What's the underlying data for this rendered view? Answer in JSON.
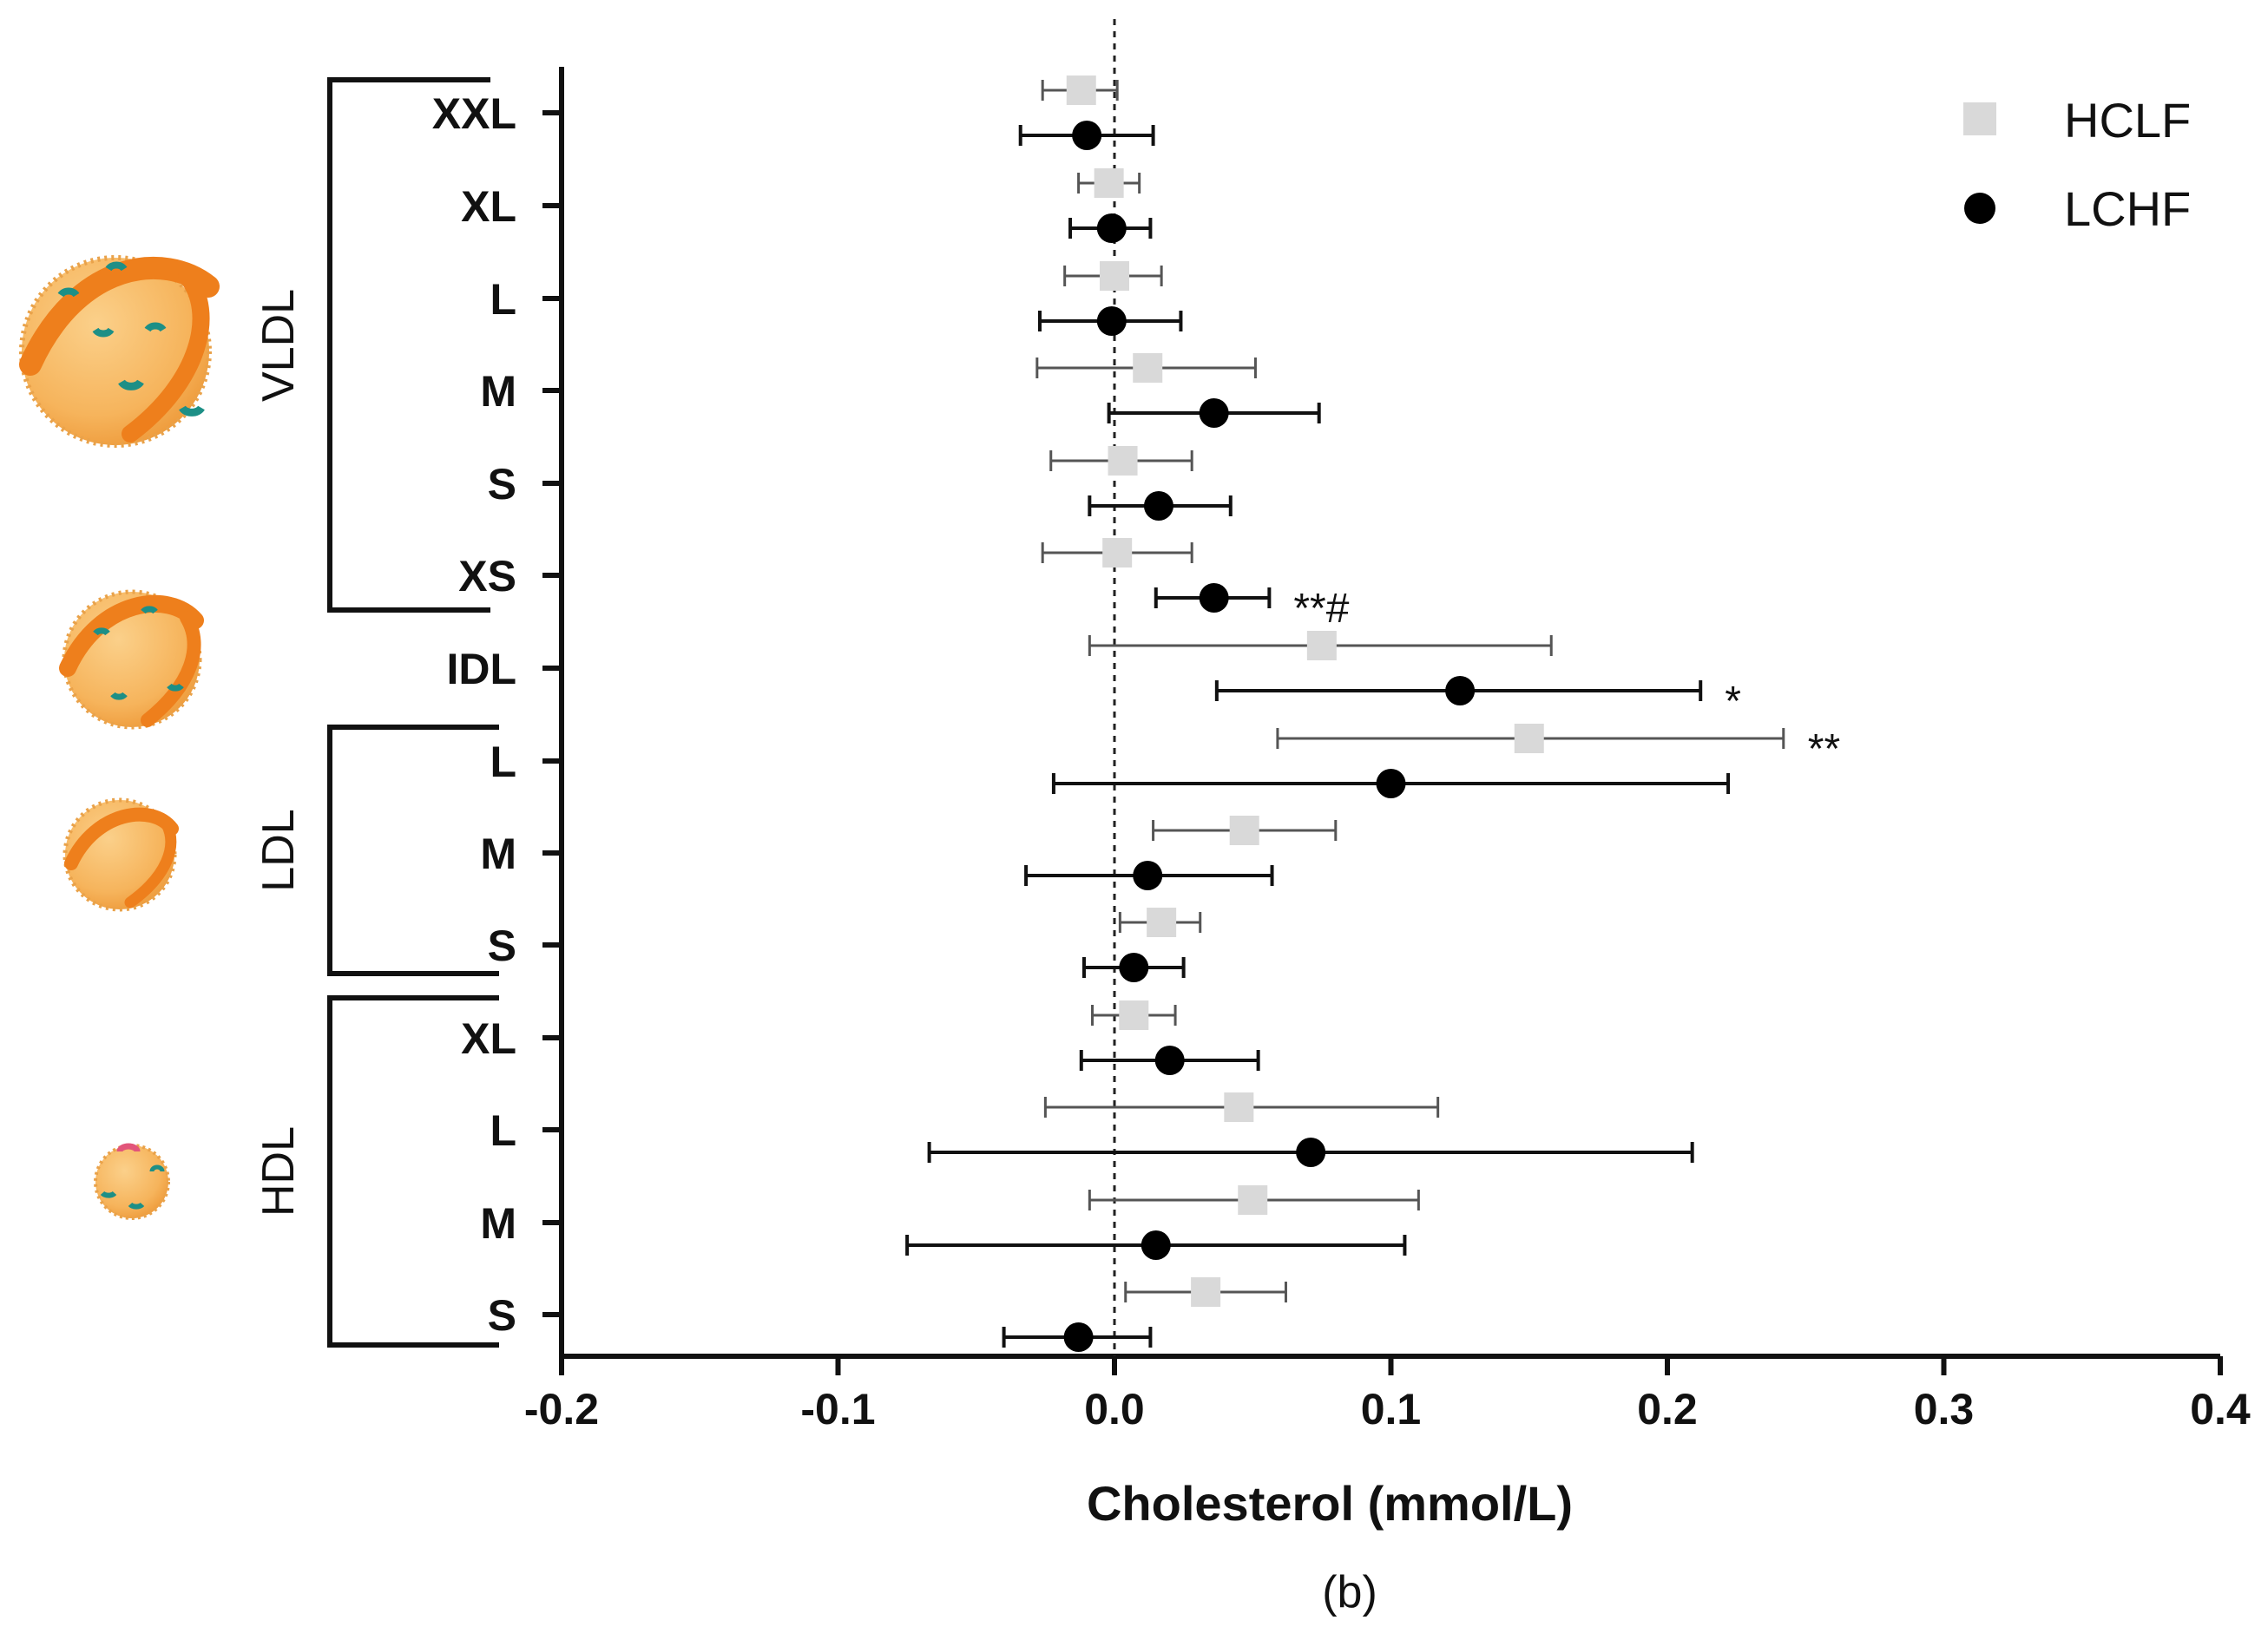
{
  "chart_data": {
    "type": "scatter",
    "subtype": "forest-plot",
    "title": "",
    "caption": "(b)",
    "xlabel": "Cholesterol (mmol/L)",
    "ylabel": "",
    "xlim": [
      -0.2,
      0.4
    ],
    "xticks": [
      -0.2,
      -0.1,
      0.0,
      0.1,
      0.2,
      0.3,
      0.4
    ],
    "xtick_labels": [
      "-0.2",
      "-0.1",
      "0.0",
      "0.1",
      "0.2",
      "0.3",
      "0.4"
    ],
    "reference_line": 0.0,
    "legend": {
      "position": "top-right",
      "entries": [
        {
          "name": "HCLF",
          "marker": "square",
          "color": "#d9d9d9"
        },
        {
          "name": "LCHF",
          "marker": "circle",
          "color": "#000000"
        }
      ]
    },
    "groups": [
      {
        "name": "VLDL",
        "categories": [
          "XXL",
          "XL",
          "L",
          "M",
          "S",
          "XS"
        ]
      },
      {
        "name": "",
        "categories": [
          "IDL"
        ]
      },
      {
        "name": "LDL",
        "categories": [
          "L",
          "M",
          "S"
        ]
      },
      {
        "name": "HDL",
        "categories": [
          "XL",
          "L",
          "M",
          "S"
        ]
      }
    ],
    "categories": [
      "XXL",
      "XL",
      "L",
      "M",
      "S",
      "XS",
      "IDL",
      "L",
      "M",
      "S",
      "XL",
      "L",
      "M",
      "S"
    ],
    "series": [
      {
        "name": "HCLF",
        "marker": "square",
        "color": "#d9d9d9",
        "values": [
          -0.012,
          -0.002,
          0.0,
          0.012,
          0.003,
          0.001,
          0.075,
          0.15,
          0.047,
          0.017,
          0.007,
          0.045,
          0.05,
          0.033
        ],
        "ci_low": [
          -0.026,
          -0.013,
          -0.018,
          -0.028,
          -0.023,
          -0.026,
          -0.009,
          0.059,
          0.014,
          0.002,
          -0.008,
          -0.025,
          -0.009,
          0.004
        ],
        "ci_high": [
          0.001,
          0.009,
          0.017,
          0.051,
          0.028,
          0.028,
          0.158,
          0.242,
          0.08,
          0.031,
          0.022,
          0.117,
          0.11,
          0.062
        ],
        "annotations": [
          "",
          "",
          "",
          "",
          "",
          "",
          "",
          "**",
          "",
          "",
          "",
          "",
          "",
          ""
        ]
      },
      {
        "name": "LCHF",
        "marker": "circle",
        "color": "#000000",
        "values": [
          -0.01,
          -0.001,
          -0.001,
          0.036,
          0.016,
          0.036,
          0.125,
          0.1,
          0.012,
          0.007,
          0.02,
          0.071,
          0.015,
          -0.013
        ],
        "ci_low": [
          -0.034,
          -0.016,
          -0.027,
          -0.002,
          -0.009,
          0.015,
          0.037,
          -0.022,
          -0.032,
          -0.011,
          -0.012,
          -0.067,
          -0.075,
          -0.04
        ],
        "ci_high": [
          0.014,
          0.013,
          0.024,
          0.074,
          0.042,
          0.056,
          0.212,
          0.222,
          0.057,
          0.025,
          0.052,
          0.209,
          0.105,
          0.013
        ],
        "annotations": [
          "",
          "",
          "",
          "",
          "",
          "**#",
          "*",
          "",
          "",
          "",
          "",
          "",
          "",
          ""
        ]
      }
    ],
    "grid": false
  }
}
